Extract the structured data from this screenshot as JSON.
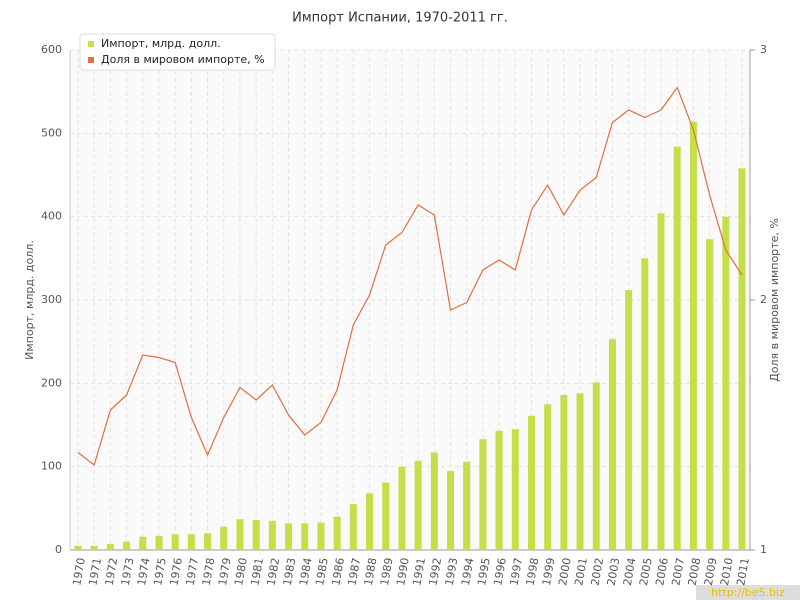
{
  "chart_data": {
    "type": "bar_line",
    "title": "Импорт Испании, 1970-2011 гг.",
    "y_label": "Импорт, млрд. долл.",
    "y2_label": "Доля в мировом импорте, %",
    "watermark": "http://be5.biz",
    "categories": [
      "1970",
      "1971",
      "1972",
      "1973",
      "1974",
      "1975",
      "1976",
      "1977",
      "1978",
      "1979",
      "1980",
      "1981",
      "1982",
      "1983",
      "1984",
      "1985",
      "1986",
      "1987",
      "1988",
      "1989",
      "1990",
      "1991",
      "1992",
      "1993",
      "1994",
      "1995",
      "1996",
      "1997",
      "1998",
      "1999",
      "2000",
      "2001",
      "2002",
      "2003",
      "2004",
      "2005",
      "2006",
      "2007",
      "2008",
      "2009",
      "2010",
      "2011"
    ],
    "series": [
      {
        "name": "Импорт, млрд. долл.",
        "color": "#c3df4a",
        "type": "bar",
        "values": [
          5,
          5,
          7,
          10,
          16,
          17,
          19,
          19,
          20,
          28,
          37,
          36,
          35,
          32,
          32,
          33,
          40,
          55,
          68,
          81,
          100,
          107,
          117,
          95,
          106,
          133,
          143,
          145,
          161,
          175,
          186,
          188,
          201,
          253,
          312,
          350,
          404,
          484,
          514,
          373,
          400,
          458
        ]
      },
      {
        "name": "Доля в мировом импорте, %",
        "color": "#e07040",
        "type": "line",
        "axis": "y2",
        "values": [
          1.39,
          1.34,
          1.56,
          1.62,
          1.78,
          1.77,
          1.75,
          1.53,
          1.38,
          1.53,
          1.65,
          1.6,
          1.66,
          1.54,
          1.46,
          1.51,
          1.64,
          1.9,
          2.02,
          2.22,
          2.27,
          2.38,
          2.34,
          1.96,
          1.99,
          2.12,
          2.16,
          2.12,
          2.36,
          2.46,
          2.34,
          2.44,
          2.49,
          2.71,
          2.76,
          2.73,
          2.76,
          2.85,
          2.68,
          2.42,
          2.2,
          2.1
        ]
      }
    ],
    "ylim": [
      0,
      600
    ],
    "yticks": [
      0,
      100,
      200,
      300,
      400,
      500,
      600
    ],
    "y2lim": [
      1,
      3
    ],
    "y2ticks": [
      1,
      2,
      3
    ],
    "grid": true,
    "legend": "top-left"
  }
}
